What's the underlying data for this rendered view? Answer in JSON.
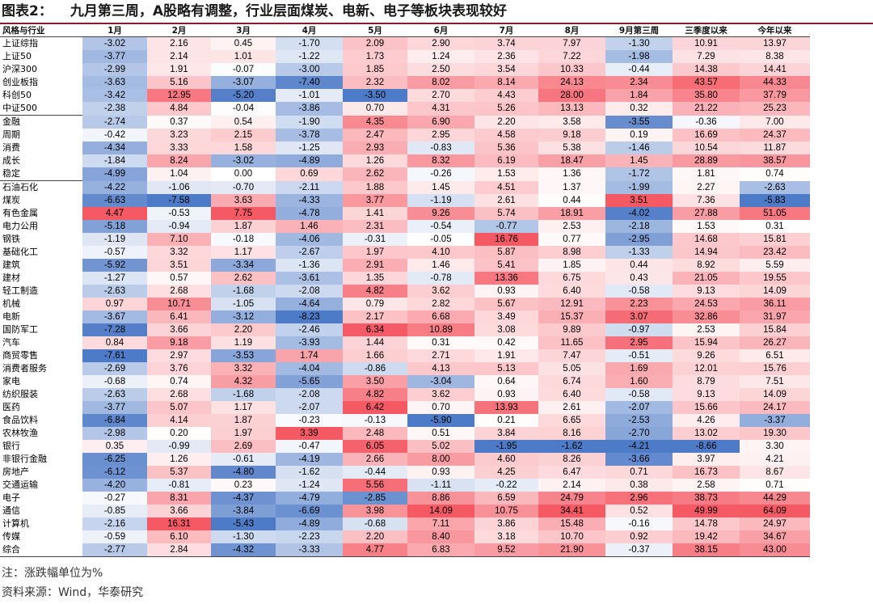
{
  "title": {
    "label": "图表2：",
    "text": "九月第三周，A股略有调整，行业层面煤炭、电新、电子等板块表现较好"
  },
  "chart_data": {
    "type": "table",
    "row_header": "风格与行业",
    "columns": [
      "1月",
      "2月",
      "3月",
      "4月",
      "5月",
      "6月",
      "7月",
      "8月",
      "9月第三周",
      "三季度以来",
      "今年以来"
    ],
    "rows": [
      {
        "name": "上证综指",
        "values": [
          -3.02,
          2.16,
          0.45,
          -1.7,
          2.09,
          2.9,
          3.74,
          7.97,
          -1.3,
          10.91,
          13.97
        ]
      },
      {
        "name": "上证50",
        "values": [
          -3.77,
          2.14,
          1.01,
          -1.22,
          1.73,
          1.24,
          2.36,
          7.22,
          -1.98,
          7.29,
          8.38
        ]
      },
      {
        "name": "沪深300",
        "values": [
          -2.99,
          1.91,
          -0.07,
          -3.0,
          1.85,
          2.5,
          3.54,
          10.33,
          -0.44,
          14.38,
          14.41
        ]
      },
      {
        "name": "创业板指",
        "values": [
          -3.63,
          5.16,
          -3.07,
          -7.4,
          2.32,
          8.02,
          8.14,
          24.13,
          2.34,
          43.57,
          44.33
        ]
      },
      {
        "name": "科创50",
        "values": [
          -3.42,
          12.95,
          -5.2,
          -1.01,
          -3.5,
          2.7,
          4.43,
          28.0,
          1.84,
          35.8,
          37.79
        ]
      },
      {
        "name": "中证500",
        "values": [
          -2.38,
          4.84,
          -0.04,
          -3.86,
          0.7,
          4.31,
          5.26,
          13.13,
          0.32,
          21.22,
          25.23
        ]
      },
      {
        "name": "金融",
        "values": [
          -2.74,
          0.37,
          0.54,
          -1.9,
          4.35,
          6.9,
          2.2,
          3.58,
          -3.55,
          -0.36,
          7.0
        ]
      },
      {
        "name": "周期",
        "values": [
          -0.42,
          3.23,
          2.15,
          -3.78,
          2.47,
          2.95,
          4.58,
          9.18,
          0.19,
          16.69,
          24.37
        ]
      },
      {
        "name": "消费",
        "values": [
          -4.34,
          3.33,
          1.58,
          -1.25,
          2.93,
          -0.83,
          5.36,
          5.38,
          -1.46,
          10.54,
          11.87
        ]
      },
      {
        "name": "成长",
        "values": [
          -1.84,
          8.24,
          -3.02,
          -4.89,
          1.26,
          8.32,
          6.19,
          18.47,
          1.45,
          28.89,
          38.57
        ]
      },
      {
        "name": "稳定",
        "values": [
          -4.99,
          1.04,
          0.0,
          0.69,
          2.62,
          -0.26,
          1.53,
          1.36,
          -1.72,
          1.81,
          0.74
        ]
      },
      {
        "name": "石油石化",
        "values": [
          -4.22,
          -1.06,
          -0.7,
          -2.11,
          1.88,
          1.45,
          4.51,
          1.37,
          -1.99,
          2.27,
          -2.63
        ]
      },
      {
        "name": "煤炭",
        "values": [
          -6.63,
          -7.58,
          3.63,
          -4.33,
          3.77,
          -1.19,
          2.61,
          0.44,
          3.51,
          7.36,
          -5.83
        ]
      },
      {
        "name": "有色金属",
        "values": [
          4.47,
          -0.53,
          7.75,
          -4.78,
          1.41,
          9.26,
          5.74,
          18.91,
          -4.02,
          27.88,
          51.05
        ]
      },
      {
        "name": "电力公用",
        "values": [
          -5.18,
          -0.94,
          1.87,
          1.46,
          2.31,
          -0.54,
          -0.77,
          2.53,
          -2.18,
          1.53,
          0.31
        ]
      },
      {
        "name": "钢铁",
        "values": [
          -1.19,
          7.1,
          -0.18,
          -4.06,
          -0.31,
          -0.05,
          16.76,
          0.77,
          -2.95,
          14.68,
          15.81
        ]
      },
      {
        "name": "基础化工",
        "values": [
          -0.57,
          3.32,
          1.17,
          -2.67,
          1.97,
          4.1,
          5.87,
          8.98,
          -1.33,
          14.94,
          23.42
        ]
      },
      {
        "name": "建筑",
        "values": [
          -5.92,
          3.51,
          -3.34,
          -1.36,
          2.91,
          1.46,
          5.41,
          1.85,
          0.44,
          8.92,
          5.59
        ]
      },
      {
        "name": "建材",
        "values": [
          -1.27,
          0.57,
          2.62,
          -3.61,
          1.35,
          -0.78,
          13.36,
          6.75,
          0.43,
          21.05,
          19.55
        ]
      },
      {
        "name": "轻工制造",
        "values": [
          -2.63,
          2.68,
          -1.68,
          -2.08,
          4.82,
          3.62,
          0.93,
          6.4,
          -0.58,
          9.13,
          14.09
        ]
      },
      {
        "name": "机械",
        "values": [
          0.97,
          10.71,
          -1.05,
          -4.64,
          0.79,
          2.82,
          5.67,
          12.91,
          2.23,
          24.53,
          36.11
        ]
      },
      {
        "name": "电新",
        "values": [
          -3.67,
          6.41,
          -3.12,
          -8.23,
          2.17,
          6.68,
          3.49,
          15.37,
          3.07,
          32.86,
          31.97
        ]
      },
      {
        "name": "国防军工",
        "values": [
          -7.28,
          3.66,
          2.2,
          -2.46,
          6.34,
          10.89,
          3.08,
          9.89,
          -0.97,
          2.53,
          15.84
        ]
      },
      {
        "name": "汽车",
        "values": [
          0.84,
          9.18,
          1.19,
          -3.93,
          1.44,
          0.31,
          0.42,
          11.65,
          2.95,
          15.94,
          26.27
        ]
      },
      {
        "name": "商贸零售",
        "values": [
          -7.61,
          2.97,
          -3.53,
          1.74,
          1.66,
          2.71,
          1.91,
          7.47,
          -0.51,
          9.26,
          6.51
        ]
      },
      {
        "name": "消费者服务",
        "values": [
          -2.69,
          3.76,
          3.32,
          -4.04,
          -0.86,
          4.13,
          5.13,
          5.05,
          1.69,
          12.01,
          15.76
        ]
      },
      {
        "name": "家电",
        "values": [
          -0.68,
          0.74,
          4.32,
          -5.65,
          3.5,
          -3.04,
          0.64,
          6.74,
          1.6,
          8.79,
          7.51
        ]
      },
      {
        "name": "纺织服装",
        "values": [
          -2.63,
          2.68,
          -1.68,
          -2.08,
          4.82,
          3.62,
          0.93,
          6.4,
          -0.58,
          9.13,
          14.09
        ]
      },
      {
        "name": "医药",
        "values": [
          -3.77,
          5.07,
          1.17,
          -2.07,
          6.42,
          0.7,
          13.93,
          2.61,
          -2.07,
          15.66,
          24.17
        ]
      },
      {
        "name": "食品饮料",
        "values": [
          -6.84,
          4.14,
          1.87,
          -0.23,
          -0.13,
          -5.9,
          0.21,
          6.65,
          -2.53,
          4.26,
          -3.37
        ]
      },
      {
        "name": "农林牧渔",
        "values": [
          -2.98,
          0.2,
          1.97,
          3.39,
          2.48,
          0.51,
          3.84,
          8.16,
          -2.7,
          13.02,
          19.3
        ]
      },
      {
        "name": "银行",
        "values": [
          0.35,
          -0.99,
          2.69,
          -0.47,
          6.05,
          5.02,
          -1.95,
          -1.62,
          -4.21,
          -8.66,
          3.3
        ]
      },
      {
        "name": "非银行金融",
        "values": [
          -6.25,
          1.26,
          -0.61,
          -4.19,
          2.66,
          8.0,
          4.6,
          8.26,
          -3.66,
          3.97,
          4.21
        ]
      },
      {
        "name": "房地产",
        "values": [
          -6.12,
          5.37,
          -4.8,
          -1.62,
          -0.44,
          0.93,
          4.25,
          6.47,
          0.71,
          16.73,
          8.67
        ]
      },
      {
        "name": "交通运输",
        "values": [
          -4.2,
          -0.81,
          0.23,
          -1.24,
          5.56,
          -1.11,
          -0.22,
          2.14,
          0.38,
          2.58,
          0.71
        ]
      },
      {
        "name": "电子",
        "values": [
          -0.27,
          8.31,
          -4.37,
          -4.79,
          -2.85,
          8.86,
          6.59,
          24.79,
          2.96,
          38.73,
          44.29
        ]
      },
      {
        "name": "通信",
        "values": [
          -0.85,
          3.66,
          -3.84,
          -6.69,
          3.98,
          14.09,
          10.75,
          34.41,
          0.52,
          49.99,
          64.09
        ]
      },
      {
        "name": "计算机",
        "values": [
          -2.16,
          16.31,
          -5.43,
          -4.89,
          -0.68,
          7.11,
          3.86,
          15.48,
          -0.16,
          14.78,
          24.97
        ]
      },
      {
        "name": "传媒",
        "values": [
          -0.59,
          6.1,
          -1.3,
          -2.23,
          2.2,
          8.4,
          3.18,
          10.7,
          0.92,
          19.42,
          34.67
        ]
      },
      {
        "name": "综合",
        "values": [
          -2.77,
          2.84,
          -4.32,
          -3.33,
          4.77,
          6.83,
          9.52,
          21.9,
          -0.37,
          38.15,
          43.0
        ]
      }
    ]
  },
  "colors": {
    "positive": "#f44b57",
    "negative": "#3f6fc2",
    "neutral": "#ffffff",
    "rule": "#8a1c2a"
  },
  "note": "注：涨跌幅单位为%",
  "source": "资料来源：Wind，华泰研究"
}
